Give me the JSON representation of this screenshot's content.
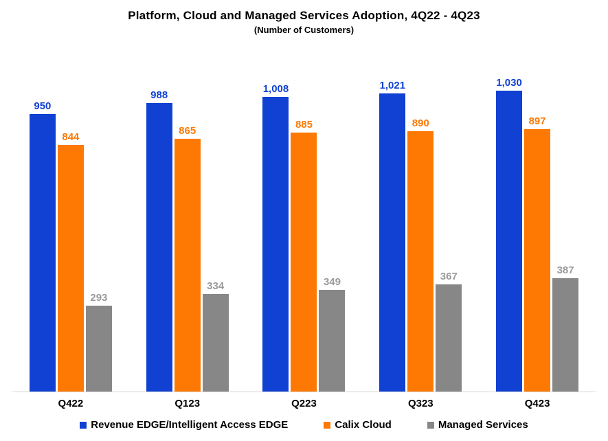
{
  "chart_data": {
    "type": "bar",
    "title": "Platform, Cloud and Managed Services Adoption, 4Q22 - 4Q23",
    "subtitle": "(Number of Customers)",
    "categories": [
      "Q422",
      "Q123",
      "Q223",
      "Q323",
      "Q423"
    ],
    "series": [
      {
        "name": "Revenue EDGE/Intelligent Access EDGE",
        "color": "#1141d2",
        "label_color": "#1141d2",
        "values": [
          950,
          988,
          1008,
          1021,
          1030
        ],
        "labels": [
          "950",
          "988",
          "1,008",
          "1,021",
          "1,030"
        ]
      },
      {
        "name": "Calix Cloud",
        "color": "#fd7903",
        "label_color": "#fd7903",
        "values": [
          844,
          865,
          885,
          890,
          897
        ],
        "labels": [
          "844",
          "865",
          "885",
          "890",
          "897"
        ]
      },
      {
        "name": "Managed Services",
        "color": "#878787",
        "label_color": "#9a9a9a",
        "values": [
          293,
          334,
          349,
          367,
          387
        ],
        "labels": [
          "293",
          "334",
          "349",
          "367",
          "387"
        ]
      }
    ],
    "ylim": [
      0,
      1100
    ],
    "grid": false,
    "y_axis_visible": false,
    "legend_position": "bottom",
    "axis_line_color": "#d6d6d6",
    "background": "#ffffff"
  }
}
